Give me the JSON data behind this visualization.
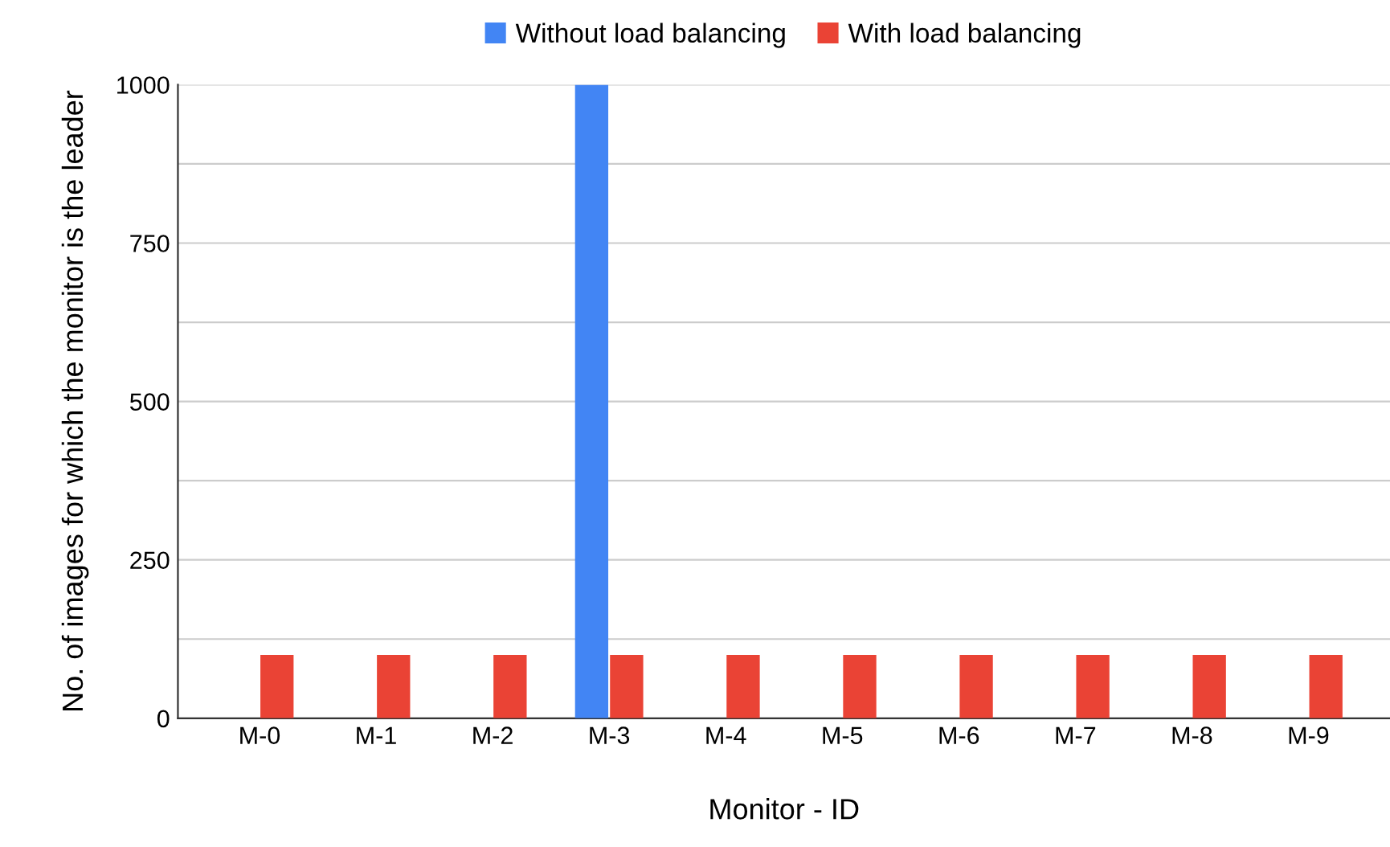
{
  "chart_data": {
    "type": "bar",
    "xlabel": "Monitor - ID",
    "ylabel": "No. of images for which the monitor is the leader",
    "categories": [
      "M-0",
      "M-1",
      "M-2",
      "M-3",
      "M-4",
      "M-5",
      "M-6",
      "M-7",
      "M-8",
      "M-9"
    ],
    "series": [
      {
        "name": "Without load balancing",
        "color": "#4285f4",
        "values": [
          0,
          0,
          0,
          1000,
          0,
          0,
          0,
          0,
          0,
          0
        ]
      },
      {
        "name": "With load balancing",
        "color": "#ea4335",
        "values": [
          100,
          100,
          100,
          100,
          100,
          100,
          100,
          100,
          100,
          100
        ]
      }
    ],
    "ylim": [
      0,
      1000
    ],
    "yticks": [
      0,
      {
        "value": 125,
        "label": null
      },
      250,
      {
        "value": 375,
        "label": null
      },
      500,
      {
        "value": 625,
        "label": null
      },
      750,
      {
        "value": 875,
        "label": null
      },
      1000
    ],
    "grid": "y",
    "legend": "top"
  }
}
